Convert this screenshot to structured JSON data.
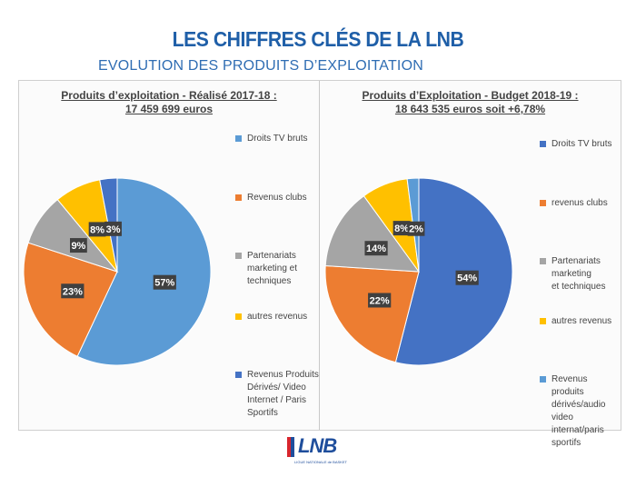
{
  "header": {
    "title": "LES CHIFFRES CLÉS DE LA LNB",
    "subtitle": "EVOLUTION DES PRODUITS D’EXPLOITATION"
  },
  "colors": {
    "title": "#1f5fa8",
    "light_blue": "#5b9bd5",
    "dark_blue": "#4472c4",
    "orange": "#ed7d31",
    "gray": "#a5a5a5",
    "yellow": "#ffc000",
    "label_bg": "#404040"
  },
  "chart_data": [
    {
      "type": "pie",
      "title": "Produits d’exploitation - Réalisé 2017-18 :",
      "subtitle": "17 459 699 euros",
      "categories": [
        "Droits TV bruts",
        "Revenus clubs",
        "Partenariats marketing et techniques",
        "autres revenus",
        "Revenus Produits Dérivés/ Video Internet / Paris Sportifs"
      ],
      "values": [
        57,
        23,
        9,
        8,
        3
      ],
      "data_labels": [
        "57%",
        "23%",
        "9%",
        "8%",
        "3%"
      ],
      "slice_colors": [
        "#5b9bd5",
        "#ed7d31",
        "#a5a5a5",
        "#ffc000",
        "#4472c4"
      ],
      "legend_lines": [
        [
          "Droits TV bruts"
        ],
        [
          "Revenus clubs"
        ],
        [
          "Partenariats",
          "marketing et",
          "techniques"
        ],
        [
          "autres revenus"
        ],
        [
          "Revenus Produits",
          "Dérivés/ Video",
          "Internet / Paris",
          "Sportifs"
        ]
      ],
      "legend_position": "right"
    },
    {
      "type": "pie",
      "title": "Produits d’Exploitation - Budget 2018-19 :",
      "subtitle": "18 643 535 euros soit +6,78%",
      "categories": [
        "Droits TV bruts",
        "revenus clubs",
        "Partenariats marketing et techniques",
        "autres revenus",
        "Revenus produits dérivés/audio video internat/paris sportifs"
      ],
      "values": [
        54,
        22,
        14,
        8,
        2
      ],
      "data_labels": [
        "54%",
        "22%",
        "14%",
        "8%",
        "2%"
      ],
      "slice_colors": [
        "#4472c4",
        "#ed7d31",
        "#a5a5a5",
        "#ffc000",
        "#5b9bd5"
      ],
      "legend_lines": [
        [
          "Droits TV bruts"
        ],
        [
          "revenus clubs"
        ],
        [
          "Partenariats marketing",
          "et techniques"
        ],
        [
          "autres revenus"
        ],
        [
          "Revenus  produits",
          "dérivés/audio video",
          "internat/paris sportifs"
        ]
      ],
      "legend_position": "right"
    }
  ],
  "footer": {
    "logo_text": "LNB",
    "logo_subtext": "LIGUE NATIONALE de BASKET"
  }
}
